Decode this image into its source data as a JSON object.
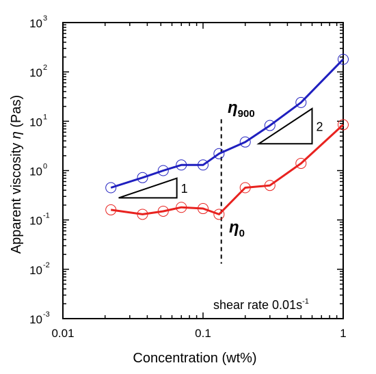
{
  "chart_data": {
    "type": "line",
    "title": "",
    "xlabel": "Concentration (wt%)",
    "ylabel": {
      "pre": "Apparent viscosity ",
      "sym": "η",
      "post": " (Pas)"
    },
    "xscale": "log",
    "yscale": "log",
    "xlim": [
      0.01,
      1
    ],
    "ylim": [
      0.001,
      1000
    ],
    "x_ticks": [
      {
        "value": 0.01,
        "label": "0.01"
      },
      {
        "value": 0.1,
        "label": "0.1"
      },
      {
        "value": 1,
        "label": "1"
      }
    ],
    "y_ticks": [
      {
        "value": 0.001,
        "base": "10",
        "exp": "-3"
      },
      {
        "value": 0.01,
        "base": "10",
        "exp": "-2"
      },
      {
        "value": 0.1,
        "base": "10",
        "exp": "-1"
      },
      {
        "value": 1,
        "base": "10",
        "exp": "0"
      },
      {
        "value": 10,
        "base": "10",
        "exp": "1"
      },
      {
        "value": 100,
        "base": "10",
        "exp": "2"
      },
      {
        "value": 1000,
        "base": "10",
        "exp": "3"
      }
    ],
    "grid": false,
    "series": [
      {
        "label": {
          "sym": "η",
          "sub": "900"
        },
        "color": "#1f1fbf",
        "x": [
          0.022,
          0.037,
          0.052,
          0.07,
          0.1,
          0.13,
          0.2,
          0.3,
          0.5,
          1.0
        ],
        "y": [
          0.45,
          0.72,
          1.0,
          1.3,
          1.3,
          2.2,
          3.8,
          8.2,
          24,
          180
        ]
      },
      {
        "label": {
          "sym": "η",
          "sub": "0"
        },
        "color": "#e8221f",
        "x": [
          0.022,
          0.037,
          0.052,
          0.07,
          0.1,
          0.13,
          0.2,
          0.3,
          0.5,
          1.0
        ],
        "y": [
          0.16,
          0.13,
          0.15,
          0.18,
          0.17,
          0.13,
          0.45,
          0.5,
          1.4,
          8.5
        ]
      }
    ],
    "marker": "open-circle",
    "vertical_line": {
      "x": 0.135,
      "y_from": 0.013,
      "y_to": 11,
      "style": "dashed"
    },
    "slope_triangles": [
      {
        "label": "1",
        "x_from": 0.025,
        "x_to": 0.065,
        "y_base": 0.28,
        "y_top": 0.7
      },
      {
        "label": "2",
        "x_from": 0.25,
        "x_to": 0.6,
        "y_base": 3.5,
        "y_top": 18
      }
    ],
    "annotation": {
      "text": "shear rate 0.01s",
      "exp": "-1"
    }
  }
}
